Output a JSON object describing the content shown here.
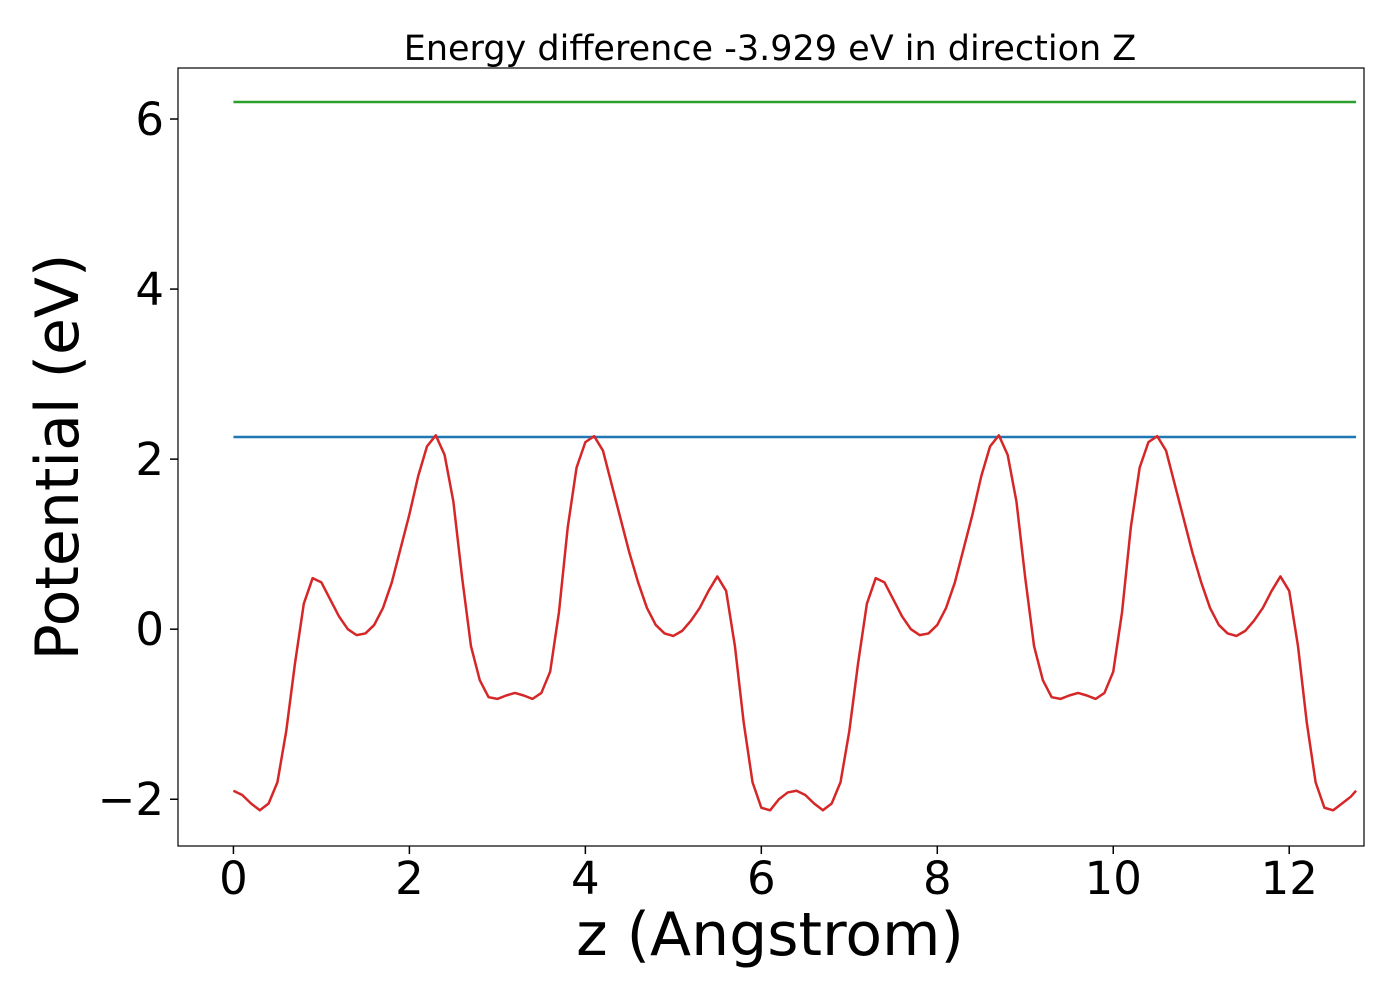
{
  "chart_data": {
    "type": "line",
    "title": "Energy difference -3.929 eV in direction Z",
    "xlabel": "z (Angstrom)",
    "ylabel": "Potential (eV)",
    "xlim": [
      -0.63,
      12.85
    ],
    "ylim": [
      -2.55,
      6.6
    ],
    "xticks": [
      0,
      2,
      4,
      6,
      8,
      10,
      12
    ],
    "yticks": [
      -2,
      0,
      2,
      4,
      6
    ],
    "xtick_labels": [
      "0",
      "2",
      "4",
      "6",
      "8",
      "10",
      "12"
    ],
    "ytick_labels": [
      "−2",
      "0",
      "2",
      "4",
      "6"
    ],
    "grid": false,
    "legend": false,
    "series": [
      {
        "color": "#2ca02c",
        "x": [
          0,
          12.76
        ],
        "y": [
          6.2,
          6.2
        ]
      },
      {
        "color": "#1f77b4",
        "x": [
          0,
          12.76
        ],
        "y": [
          2.26,
          2.26
        ]
      },
      {
        "color": "#d62728",
        "x": [
          0.0,
          0.1,
          0.2,
          0.3,
          0.4,
          0.5,
          0.6,
          0.7,
          0.8,
          0.9,
          1.0,
          1.1,
          1.2,
          1.3,
          1.4,
          1.5,
          1.6,
          1.7,
          1.8,
          1.9,
          2.0,
          2.1,
          2.2,
          2.3,
          2.4,
          2.5,
          2.6,
          2.7,
          2.8,
          2.9,
          3.0,
          3.1,
          3.2,
          3.3,
          3.4,
          3.5,
          3.6,
          3.7,
          3.8,
          3.9,
          4.0,
          4.1,
          4.2,
          4.3,
          4.4,
          4.5,
          4.6,
          4.7,
          4.8,
          4.9,
          5.0,
          5.1,
          5.2,
          5.3,
          5.4,
          5.5,
          5.6,
          5.7,
          5.8,
          5.9,
          6.0,
          6.1,
          6.2,
          6.3,
          6.4,
          6.5,
          6.6,
          6.7,
          6.8,
          6.9,
          7.0,
          7.1,
          7.2,
          7.3,
          7.4,
          7.5,
          7.6,
          7.7,
          7.8,
          7.9,
          8.0,
          8.1,
          8.2,
          8.3,
          8.4,
          8.5,
          8.6,
          8.7,
          8.8,
          8.9,
          9.0,
          9.1,
          9.2,
          9.3,
          9.4,
          9.5,
          9.6,
          9.7,
          9.8,
          9.9,
          10.0,
          10.1,
          10.2,
          10.3,
          10.4,
          10.5,
          10.6,
          10.7,
          10.8,
          10.9,
          11.0,
          11.1,
          11.2,
          11.3,
          11.4,
          11.5,
          11.6,
          11.7,
          11.8,
          11.9,
          12.0,
          12.1,
          12.2,
          12.3,
          12.4,
          12.5,
          12.6,
          12.7,
          12.76
        ],
        "y": [
          -1.9,
          -1.95,
          -2.05,
          -2.13,
          -2.05,
          -1.8,
          -1.2,
          -0.4,
          0.3,
          0.6,
          0.55,
          0.35,
          0.15,
          0.0,
          -0.07,
          -0.05,
          0.05,
          0.25,
          0.55,
          0.95,
          1.35,
          1.8,
          2.15,
          2.28,
          2.05,
          1.5,
          0.6,
          -0.2,
          -0.6,
          -0.8,
          -0.82,
          -0.78,
          -0.75,
          -0.78,
          -0.82,
          -0.75,
          -0.5,
          0.2,
          1.2,
          1.9,
          2.2,
          2.27,
          2.1,
          1.7,
          1.3,
          0.9,
          0.55,
          0.25,
          0.05,
          -0.05,
          -0.08,
          -0.02,
          0.1,
          0.25,
          0.45,
          0.62,
          0.45,
          -0.2,
          -1.1,
          -1.8,
          -2.1,
          -2.13,
          -2.0,
          -1.92,
          -1.9,
          -1.95,
          -2.05,
          -2.13,
          -2.05,
          -1.8,
          -1.2,
          -0.4,
          0.3,
          0.6,
          0.55,
          0.35,
          0.15,
          0.0,
          -0.07,
          -0.05,
          0.05,
          0.25,
          0.55,
          0.95,
          1.35,
          1.8,
          2.15,
          2.28,
          2.05,
          1.5,
          0.6,
          -0.2,
          -0.6,
          -0.8,
          -0.82,
          -0.78,
          -0.75,
          -0.78,
          -0.82,
          -0.75,
          -0.5,
          0.2,
          1.2,
          1.9,
          2.2,
          2.27,
          2.1,
          1.7,
          1.3,
          0.9,
          0.55,
          0.25,
          0.05,
          -0.05,
          -0.08,
          -0.02,
          0.1,
          0.25,
          0.45,
          0.62,
          0.45,
          -0.2,
          -1.1,
          -1.8,
          -2.1,
          -2.13,
          -2.05,
          -1.97,
          -1.9
        ]
      }
    ]
  }
}
